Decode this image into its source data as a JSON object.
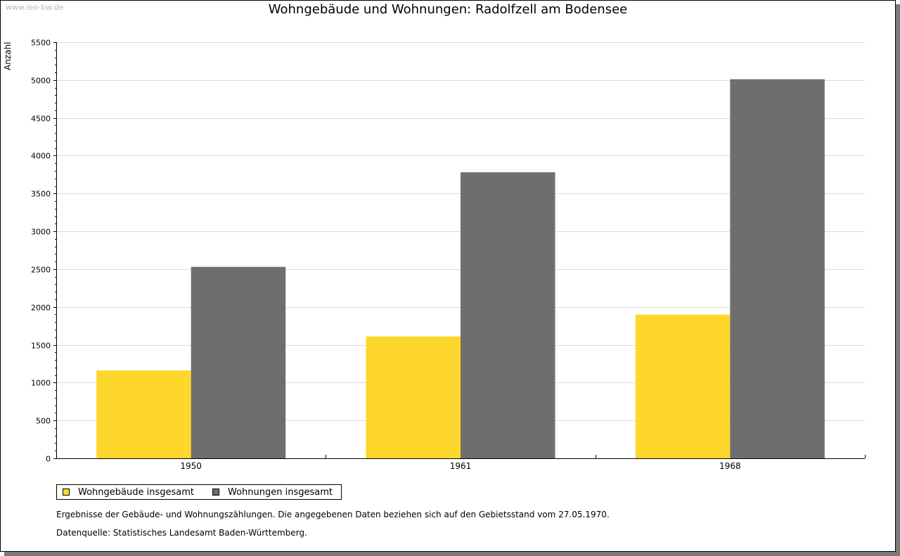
{
  "watermark": "www.leo-bw.de",
  "chart_data": {
    "type": "bar",
    "title": "Wohngebäude und Wohnungen: Radolfzell am Bodensee",
    "xlabel": "",
    "ylabel": "Anzahl",
    "categories": [
      "1950",
      "1961",
      "1968"
    ],
    "series": [
      {
        "name": "Wohngebäude insgesamt",
        "color": "#fdd72c",
        "values": [
          1160,
          1610,
          1900
        ]
      },
      {
        "name": "Wohnungen insgesamt",
        "color": "#6e6e6e",
        "values": [
          2530,
          3780,
          5010
        ]
      }
    ],
    "ylim": [
      0,
      5500
    ],
    "yticks": [
      0,
      500,
      1000,
      1500,
      2000,
      2500,
      3000,
      3500,
      4000,
      4500,
      5000,
      5500
    ],
    "grid": true,
    "legend_position": "bottom-left"
  },
  "notes": {
    "description": "Ergebnisse der Gebäude- und Wohnungszählungen. Die angegebenen Daten beziehen sich auf den Gebietsstand vom 27.05.1970.",
    "source": "Datenquelle: Statistisches Landesamt Baden-Württemberg."
  }
}
